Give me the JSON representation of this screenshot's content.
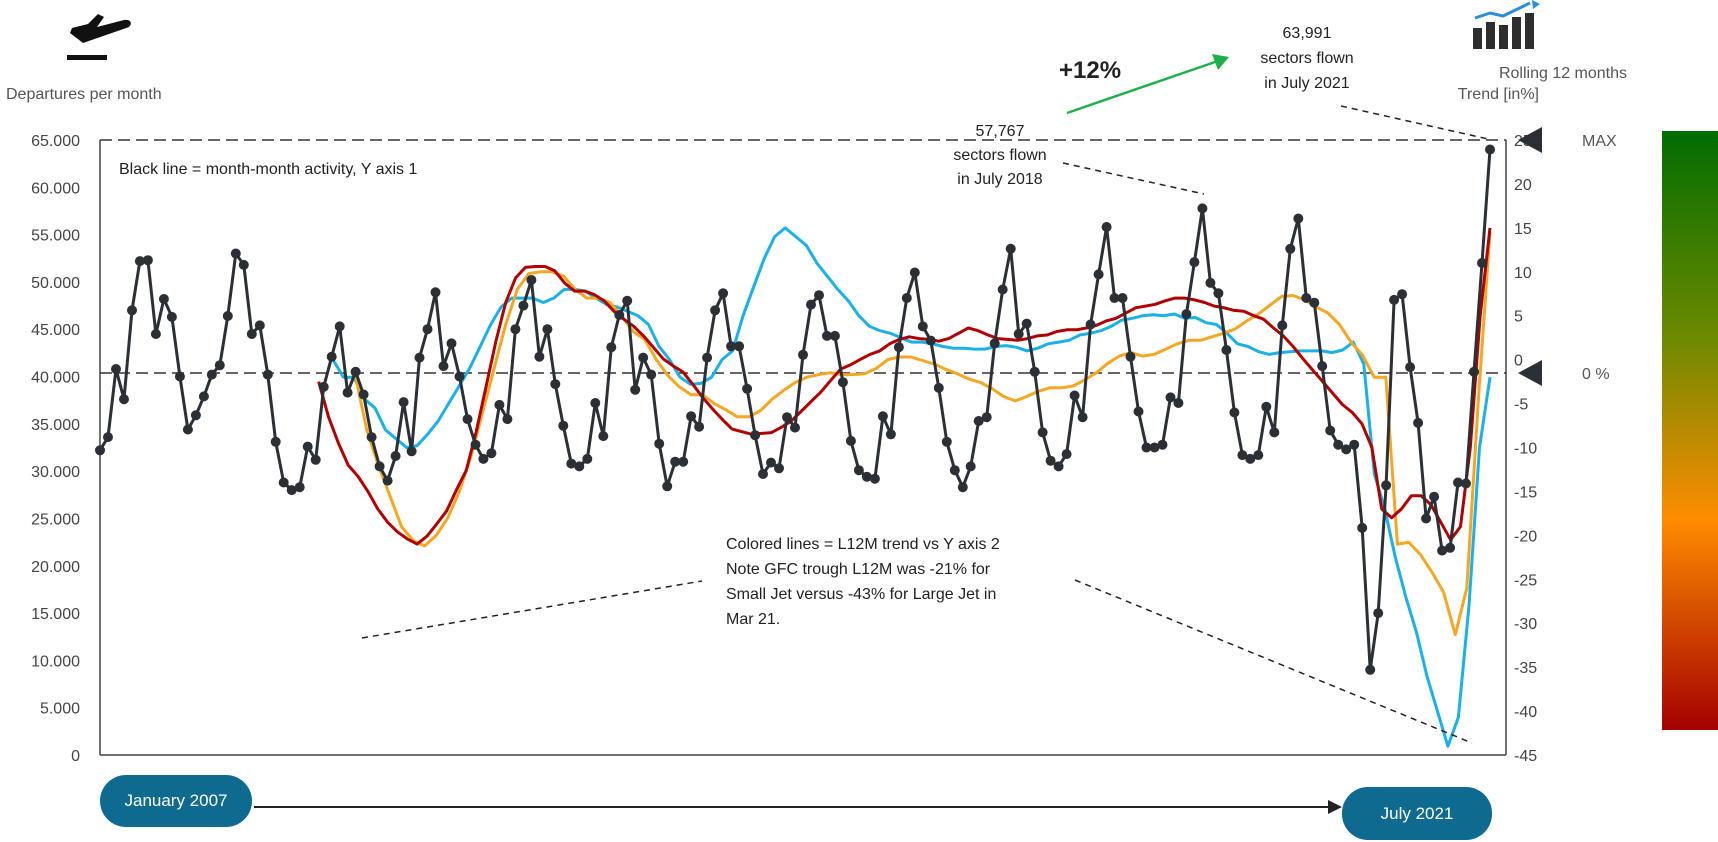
{
  "chart_data": {
    "type": "line",
    "y1_label": "Departures per month",
    "y2_label_line1": "Rolling 12 months",
    "y2_label_line2": "Trend [in%]",
    "y1_ticks": [
      "0",
      "5.000",
      "10.000",
      "15.000",
      "20.000",
      "25.000",
      "30.000",
      "35.000",
      "40.000",
      "45.000",
      "50.000",
      "55.000",
      "60.000",
      "65.000"
    ],
    "y2_ticks": [
      "-45",
      "-40",
      "-35",
      "-30",
      "-25",
      "-20",
      "-15",
      "-10",
      "-5",
      "0",
      "5",
      "10",
      "15",
      "20",
      "25"
    ],
    "y1_lim": [
      0,
      65000
    ],
    "y2_lim": [
      -45,
      25
    ],
    "start_label": "January 2007",
    "end_label": "July 2021",
    "max_label": "MAX",
    "zero_label": "0 %",
    "note_black": "Black line = month-month activity, Y axis 1",
    "note_colored": [
      "Colored lines = L12M trend vs Y axis 2",
      "Note GFC trough L12M was -21% for",
      "Small Jet versus -43% for Large Jet in",
      "Mar 21."
    ],
    "callout_2018": [
      "57,767",
      "sectors flown",
      "in July 2018"
    ],
    "callout_2021": [
      "63,991",
      "sectors flown",
      "in July 2021"
    ],
    "growth_label": "+12%",
    "colors": {
      "black": "#2b2f36",
      "red": "#b00000",
      "orange": "#f5a623",
      "blue": "#1ab0e8",
      "pill": "#0e6a8f",
      "green_arrow": "#1db04a"
    },
    "series": [
      {
        "values": [
          32200,
          33600,
          40800,
          37600,
          47000,
          52200,
          52300,
          44500,
          48200,
          46300,
          40000,
          34400,
          35900,
          37900,
          40200,
          41200,
          46400,
          53000,
          51800,
          44500,
          45400,
          40200,
          33100,
          28800,
          28000,
          28300,
          32600,
          31200,
          38900,
          42100,
          45300,
          38300,
          40500,
          38100,
          33600,
          30500,
          29000,
          31600,
          37300,
          32100,
          42000,
          45000,
          48900,
          41100,
          43500,
          40000,
          35500,
          32800,
          31300,
          31900,
          37000,
          35500,
          45000,
          47500,
          50200,
          42100,
          45000,
          39200,
          34800,
          30800,
          30500,
          31300,
          37200,
          33700,
          43100,
          46500,
          48000,
          38600,
          42000,
          40200,
          32900,
          28400,
          31000,
          31000,
          35800,
          34700,
          42000,
          47000,
          48800,
          43200,
          43200,
          38700,
          33800,
          29700,
          30900,
          30300,
          35700,
          34600,
          42300,
          47600,
          48600,
          44300,
          44300,
          39400,
          33200,
          30100,
          29400,
          29200,
          35800,
          33900,
          43100,
          48300,
          51000,
          45300,
          43800,
          38800,
          33100,
          30100,
          28300,
          30500,
          35300,
          35700,
          43500,
          49200,
          53500,
          44500,
          45600,
          40500,
          34100,
          31100,
          30500,
          31800,
          38000,
          35700,
          45500,
          50800,
          55800,
          48300,
          48300,
          42100,
          36300,
          32500,
          32500,
          32800,
          37800,
          37200,
          46600,
          52100,
          57767,
          49900,
          48800,
          42800,
          36200,
          31700,
          31300,
          31700,
          36800,
          34100,
          45400,
          53500,
          56700,
          48300,
          47800,
          41100,
          34300,
          32800,
          32300,
          32800,
          24000,
          9000,
          15000,
          28500,
          48100,
          48700,
          41000,
          35100,
          25000,
          27300,
          21600,
          21900,
          28800,
          28700,
          40500,
          52000,
          63991
        ]
      },
      {
        "values": [
          null,
          null,
          null,
          null,
          null,
          null,
          null,
          null,
          null,
          null,
          null,
          null,
          null,
          null,
          null,
          null,
          null,
          null,
          null,
          null,
          null,
          -2.5,
          -6.5,
          -9.5,
          -12,
          -13.3,
          -15,
          -17,
          -18.5,
          -19.6,
          -20.4,
          -21,
          -20.1,
          -18.7,
          -17.2,
          -14.8,
          -12.6,
          -8.2,
          -3.1,
          2.1,
          6.5,
          9.3,
          10.5,
          10.6,
          10.6,
          10.1,
          8.7,
          7.8,
          7.8,
          7.4,
          6.7,
          5.5,
          4.6,
          3.8,
          2.7,
          1.4,
          0.1,
          -0.7,
          -1.4,
          -2.8,
          -4.3,
          -5.6,
          -6.8,
          -7.9,
          -8.2,
          -8.5,
          -8.4,
          -8.3,
          -7.7,
          -7.0,
          -5.9,
          -4.8,
          -3.7,
          -2.4,
          -1.1,
          -0.6,
          0,
          0.6,
          1.0,
          1.8,
          2.3,
          2.6,
          2.4,
          2.3,
          2.1,
          2.4,
          3.0,
          3.6,
          3.3,
          2.8,
          2.4,
          2.3,
          2.2,
          2.4,
          2.7,
          2.8,
          3.2,
          3.4,
          3.4,
          3.6,
          3.9,
          4.4,
          4.7,
          5.3,
          5.9,
          6.1,
          6.3,
          6.7,
          7.0,
          7.0,
          6.8,
          6.5,
          6.1,
          5.9,
          5.6,
          5.5,
          5.0,
          4.6,
          3.6,
          2.7,
          1.5,
          0.1,
          -1.2,
          -2.5,
          -3.8,
          -5.1,
          -6.0,
          -7.3,
          -10,
          -17,
          -18,
          -17,
          -15.5,
          -15.5,
          -16.5,
          -18.5,
          -20.5,
          -19,
          -10,
          5,
          15
        ]
      },
      {
        "values": [
          null,
          null,
          null,
          null,
          null,
          null,
          null,
          null,
          null,
          null,
          null,
          null,
          null,
          null,
          null,
          null,
          null,
          null,
          null,
          null,
          null,
          -1.7,
          -8,
          -12,
          -15.5,
          -19,
          -20.6,
          -21.2,
          -20,
          -18,
          -15,
          -11,
          -6,
          -1,
          4,
          8,
          9.8,
          10,
          10,
          9.5,
          8,
          7,
          7,
          6.5,
          5,
          3.2,
          2.3,
          0,
          -1.8,
          -3.1,
          -4,
          -4,
          -5.0,
          -5.7,
          -6.5,
          -6.5,
          -5.8,
          -4.5,
          -3.5,
          -2.6,
          -2,
          -1.7,
          -1.5,
          -1.7,
          -1.7,
          -1.6,
          -1,
          0,
          0.3,
          0.3,
          -0.1,
          -0.5,
          -1.1,
          -1.6,
          -2.2,
          -2.6,
          -3.3,
          -4.2,
          -4.7,
          -4.2,
          -3.6,
          -3.2,
          -3.2,
          -3.0,
          -2.3,
          -1.5,
          -0.4,
          0.4,
          0.8,
          0.4,
          0.6,
          1.2,
          1.8,
          2.2,
          2.2,
          2.6,
          3.0,
          3.5,
          4.4,
          5.2,
          6.2,
          7.2,
          7.3,
          6.8,
          6.0,
          5.3,
          4.0,
          2.0,
          0.5,
          -2.0,
          -2.0,
          -21.0,
          -20.8,
          -22.2,
          -24.2,
          -26.5,
          -31.3,
          -26,
          -4.5,
          14.5
        ]
      },
      {
        "values": [
          null,
          null,
          null,
          null,
          null,
          null,
          null,
          null,
          null,
          null,
          null,
          null,
          null,
          null,
          null,
          null,
          null,
          null,
          null,
          null,
          null,
          0.0,
          -2.0,
          -2.0,
          -4.5,
          -5.5,
          -8,
          -9,
          -10,
          -9.8,
          -8.5,
          -7,
          -5,
          -3,
          -1,
          1.5,
          4,
          6,
          7,
          7,
          7,
          6.5,
          7,
          8,
          8,
          7.8,
          7,
          6.3,
          6,
          5.5,
          5,
          4,
          1.5,
          0,
          -2,
          -2.8,
          -2.7,
          -2,
          0,
          1,
          5,
          8.3,
          11.5,
          14,
          15,
          14,
          13,
          11,
          9.5,
          8,
          6.7,
          5,
          3.8,
          3.3,
          3,
          2.5,
          2,
          2,
          1.8,
          1.5,
          1.3,
          1.3,
          1.2,
          1.2,
          1.5,
          1.6,
          1.4,
          1.0,
          1.3,
          1.8,
          2,
          2.2,
          2.8,
          3,
          3.3,
          3.8,
          4.5,
          4.7,
          5,
          5.1,
          5,
          5.2,
          4.7,
          4.8,
          4.2,
          4,
          3,
          1.8,
          1.5,
          0.9,
          0.6,
          0.8,
          0.9,
          1.0,
          1.0,
          1.0,
          0.8,
          1.1,
          2.0,
          -0.5,
          -13,
          -17,
          -22.5,
          -27,
          -31,
          -36,
          -40,
          -44,
          -40.7,
          -28,
          -10,
          -2
        ]
      }
    ]
  }
}
